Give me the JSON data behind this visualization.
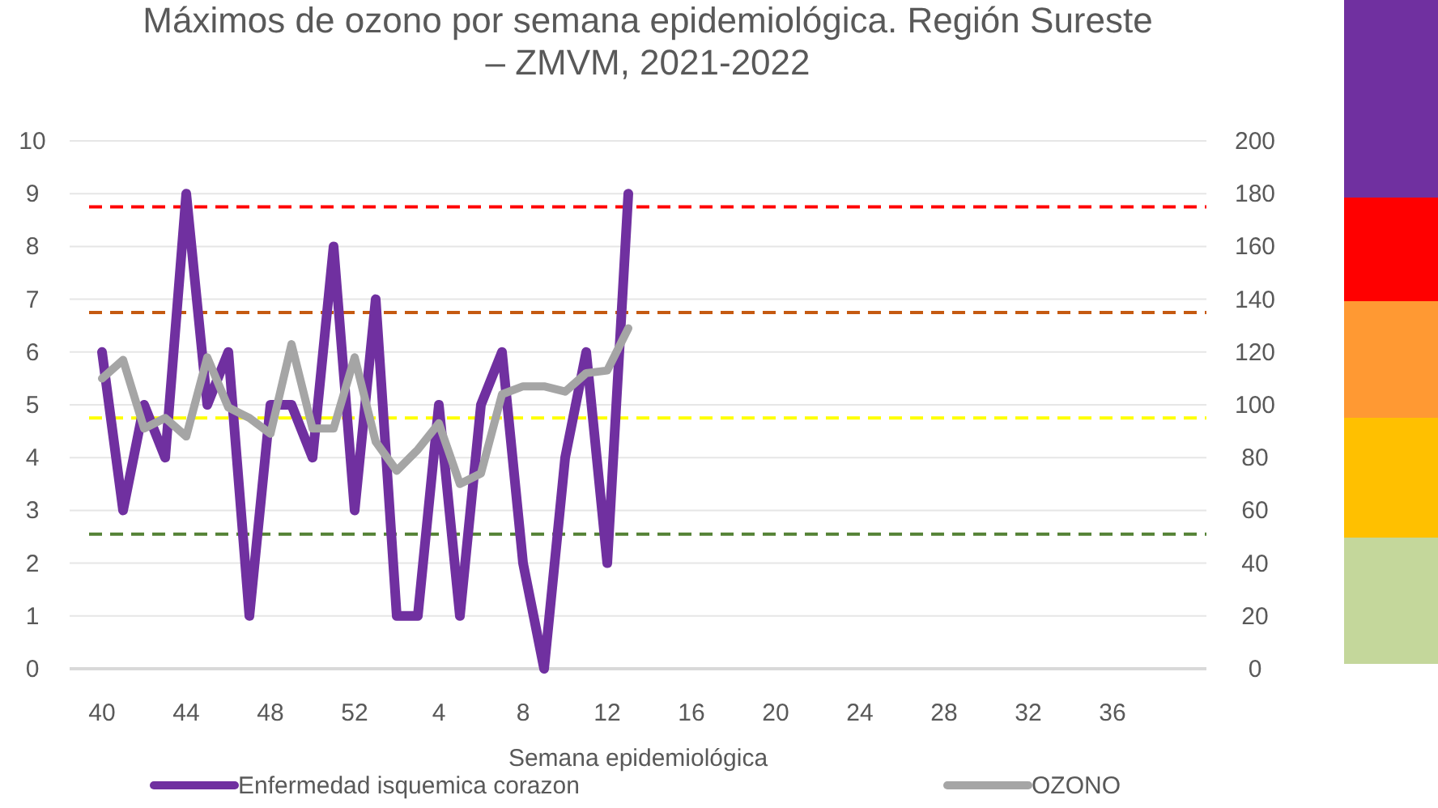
{
  "chart_data": {
    "type": "line",
    "title": "Máximos de ozono por semana epidemiológica. Región Sureste\n– ZMVM, 2021-2022",
    "xlabel": "Semana epidemiológica",
    "categories": [
      "40",
      null,
      null,
      null,
      "44",
      null,
      null,
      null,
      "48",
      null,
      null,
      null,
      "52",
      null,
      null,
      null,
      "4",
      null,
      null,
      null,
      "8",
      null,
      null,
      null,
      "12",
      null,
      null,
      null,
      "16",
      null,
      null,
      null,
      "20",
      null,
      null,
      null,
      "24",
      null,
      null,
      null,
      "28",
      null,
      null,
      null,
      "32",
      null,
      null,
      null,
      "36",
      null,
      null,
      null
    ],
    "series": [
      {
        "name": "Enfermedad isquemica corazon",
        "color": "#7030a0",
        "values": [
          6,
          3,
          5,
          4,
          9,
          5,
          6,
          1,
          5,
          5,
          4,
          8,
          3,
          7,
          1,
          1,
          5,
          1,
          5,
          6,
          2,
          0,
          4,
          6,
          2,
          9,
          null,
          null,
          null,
          null,
          null,
          null,
          null,
          null,
          null,
          null,
          null,
          null,
          null,
          null,
          null,
          null,
          null,
          null,
          null,
          null,
          null,
          null,
          null,
          null,
          null,
          null
        ]
      },
      {
        "name": "OZONO",
        "color": "#a5a5a5",
        "axis": "y2",
        "values": [
          110,
          117,
          91,
          95,
          88,
          118,
          99,
          95,
          89,
          123,
          91,
          91,
          118,
          86,
          75,
          83,
          93,
          70,
          74,
          104,
          107,
          107,
          105,
          112,
          113,
          129,
          null,
          null,
          null,
          null,
          null,
          null,
          null,
          null,
          null,
          null,
          null,
          null,
          null,
          null,
          null,
          null,
          null,
          null,
          null,
          null,
          null,
          null,
          null,
          null,
          null,
          null
        ]
      }
    ],
    "ylim": [
      0,
      10
    ],
    "yticks": [
      0,
      1,
      2,
      3,
      4,
      5,
      6,
      7,
      8,
      9,
      10
    ],
    "y2lim": [
      0,
      200
    ],
    "y2ticks": [
      0,
      20,
      40,
      60,
      80,
      100,
      120,
      140,
      160,
      180,
      200
    ],
    "ref_lines": [
      {
        "axis": "y2",
        "value": 51,
        "color": "#548235",
        "line_style": "dashed"
      },
      {
        "axis": "y2",
        "value": 95,
        "color": "#ffff00",
        "line_style": "dashed"
      },
      {
        "axis": "y2",
        "value": 135,
        "color": "#c55a11",
        "line_style": "dashed"
      },
      {
        "axis": "y2",
        "value": 175,
        "color": "#ff0000",
        "line_style": "dashed"
      }
    ],
    "grid": "y",
    "legend": "bottom",
    "marker": "none",
    "line_style": "solid"
  }
}
